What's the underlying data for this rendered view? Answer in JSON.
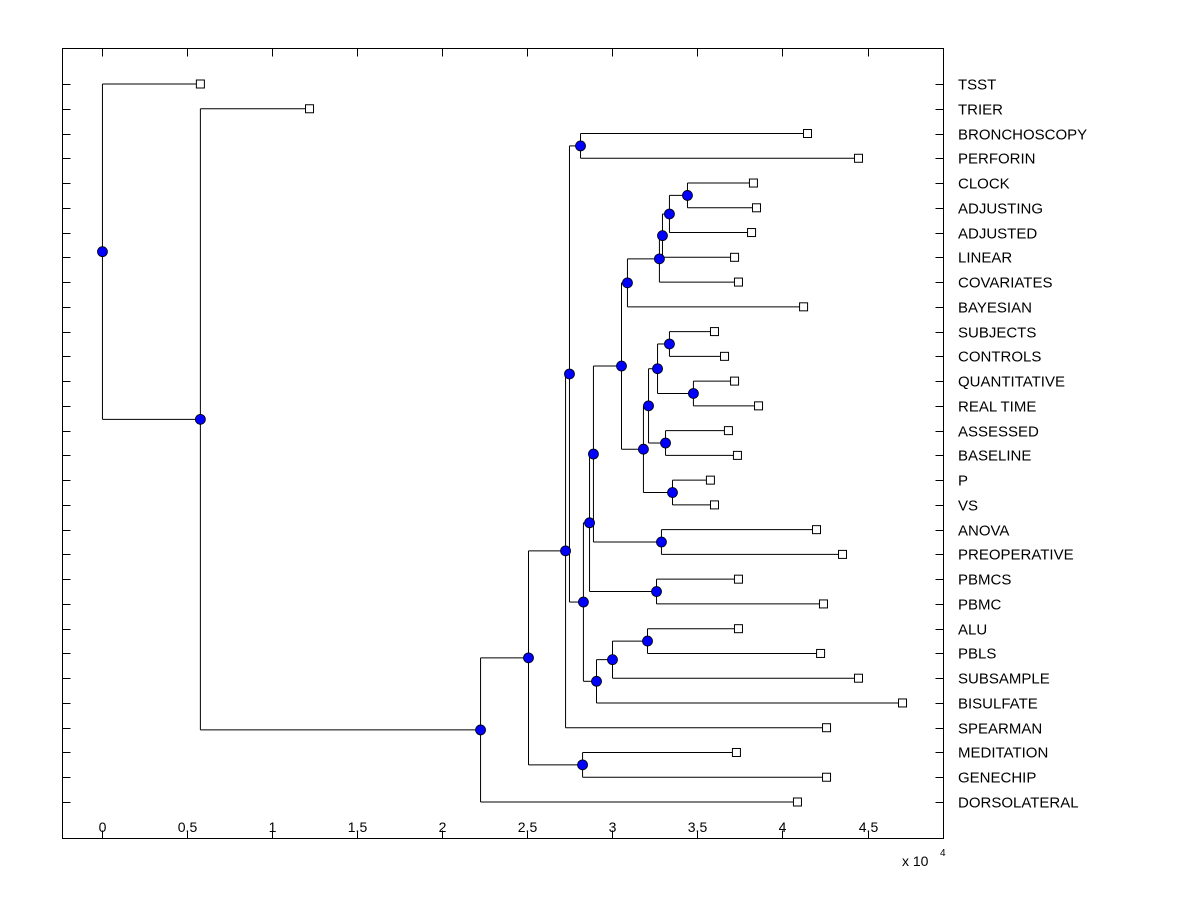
{
  "chart_data": {
    "type": "dendrogram",
    "title": "",
    "xlabel": "",
    "x_multiplier_label": "x 10",
    "x_multiplier_exponent": "4",
    "xlim": [
      -0.235,
      4.947
    ],
    "xticks": [
      "0",
      "0.5",
      "1",
      "1.5",
      "2",
      "2.5",
      "3",
      "3.5",
      "4",
      "4.5"
    ],
    "xtick_values": [
      0,
      0.5,
      1,
      1.5,
      2,
      2.5,
      3,
      3.5,
      4,
      4.5
    ],
    "leaves": [
      "TSST",
      "TRIER",
      "BRONCHOSCOPY",
      "PERFORIN",
      "CLOCK",
      "ADJUSTING",
      "ADJUSTED",
      "LINEAR",
      "COVARIATES",
      "BAYESIAN",
      "SUBJECTS",
      "CONTROLS",
      "QUANTITATIVE",
      "REAL TIME",
      "ASSESSED",
      "BASELINE",
      "P",
      "VS",
      "ANOVA",
      "PREOPERATIVE",
      "PBMCS",
      "PBMC",
      "ALU",
      "PBLS",
      "SUBSAMPLE",
      "BISULFATE",
      "SPEARMAN",
      "MEDITATION",
      "GENECHIP",
      "DORSOLATERAL"
    ],
    "node_color": "#0000ff",
    "tree": {
      "x": 0,
      "children": [
        {
          "leaf": "TSST",
          "x": 0.576
        },
        {
          "x": 0.576,
          "children": [
            {
              "leaf": "TRIER",
              "x": 1.218
            },
            {
              "x": 2.224,
              "children": [
                {
                  "x": 2.506,
                  "children": [
                    {
                      "x": 2.724,
                      "children": [
                        {
                          "x": 2.747,
                          "children": [
                            {
                              "x": 2.812,
                              "children": [
                                {
                                  "leaf": "BRONCHOSCOPY",
                                  "x": 4.147
                                },
                                {
                                  "leaf": "PERFORIN",
                                  "x": 4.447
                                }
                              ]
                            },
                            {
                              "x": 2.829,
                              "children": [
                                {
                                  "x": 2.865,
                                  "children": [
                                    {
                                      "x": 2.888,
                                      "children": [
                                        {
                                          "x": 3.053,
                                          "children": [
                                            {
                                              "x": 3.088,
                                              "children": [
                                                {
                                                  "x": 3.276,
                                                  "children": [
                                                    {
                                                      "x": 3.294,
                                                      "children": [
                                                        {
                                                          "x": 3.335,
                                                          "children": [
                                                            {
                                                              "x": 3.441,
                                                              "children": [
                                                                {
                                                                  "leaf": "CLOCK",
                                                                  "x": 3.829
                                                                },
                                                                {
                                                                  "leaf": "ADJUSTING",
                                                                  "x": 3.847
                                                                }
                                                              ]
                                                            },
                                                            {
                                                              "leaf": "ADJUSTED",
                                                              "x": 3.818
                                                            }
                                                          ]
                                                        },
                                                        {
                                                          "leaf": "LINEAR",
                                                          "x": 3.718
                                                        }
                                                      ]
                                                    },
                                                    {
                                                      "leaf": "COVARIATES",
                                                      "x": 3.741
                                                    }
                                                  ]
                                                },
                                                {
                                                  "leaf": "BAYESIAN",
                                                  "x": 4.124
                                                }
                                              ]
                                            },
                                            {
                                              "x": 3.182,
                                              "children": [
                                                {
                                                  "x": 3.212,
                                                  "children": [
                                                    {
                                                      "x": 3.265,
                                                      "children": [
                                                        {
                                                          "x": 3.335,
                                                          "children": [
                                                            {
                                                              "leaf": "SUBJECTS",
                                                              "x": 3.6
                                                            },
                                                            {
                                                              "leaf": "CONTROLS",
                                                              "x": 3.659
                                                            }
                                                          ]
                                                        },
                                                        {
                                                          "x": 3.476,
                                                          "children": [
                                                            {
                                                              "leaf": "QUANTITATIVE",
                                                              "x": 3.718
                                                            },
                                                            {
                                                              "leaf": "REAL TIME",
                                                              "x": 3.859
                                                            }
                                                          ]
                                                        }
                                                      ]
                                                    },
                                                    {
                                                      "x": 3.312,
                                                      "children": [
                                                        {
                                                          "leaf": "ASSESSED",
                                                          "x": 3.682
                                                        },
                                                        {
                                                          "leaf": "BASELINE",
                                                          "x": 3.735
                                                        }
                                                      ]
                                                    }
                                                  ]
                                                },
                                                {
                                                  "x": 3.353,
                                                  "children": [
                                                    {
                                                      "leaf": "P",
                                                      "x": 3.576
                                                    },
                                                    {
                                                      "leaf": "VS",
                                                      "x": 3.6
                                                    }
                                                  ]
                                                }
                                              ]
                                            }
                                          ]
                                        },
                                        {
                                          "x": 3.288,
                                          "children": [
                                            {
                                              "leaf": "ANOVA",
                                              "x": 4.2
                                            },
                                            {
                                              "leaf": "PREOPERATIVE",
                                              "x": 4.353
                                            }
                                          ]
                                        }
                                      ]
                                    },
                                    {
                                      "x": 3.259,
                                      "children": [
                                        {
                                          "leaf": "PBMCS",
                                          "x": 3.741
                                        },
                                        {
                                          "leaf": "PBMC",
                                          "x": 4.241
                                        }
                                      ]
                                    }
                                  ]
                                },
                                {
                                  "x": 2.906,
                                  "children": [
                                    {
                                      "x": 3.0,
                                      "children": [
                                        {
                                          "x": 3.206,
                                          "children": [
                                            {
                                              "leaf": "ALU",
                                              "x": 3.741
                                            },
                                            {
                                              "leaf": "PBLS",
                                              "x": 4.224
                                            }
                                          ]
                                        },
                                        {
                                          "leaf": "SUBSAMPLE",
                                          "x": 4.447
                                        }
                                      ]
                                    },
                                    {
                                      "leaf": "BISULFATE",
                                      "x": 4.706
                                    }
                                  ]
                                }
                              ]
                            }
                          ]
                        },
                        {
                          "leaf": "SPEARMAN",
                          "x": 4.259
                        }
                      ]
                    },
                    {
                      "x": 2.824,
                      "children": [
                        {
                          "leaf": "MEDITATION",
                          "x": 3.729
                        },
                        {
                          "leaf": "GENECHIP",
                          "x": 4.259
                        }
                      ]
                    }
                  ]
                },
                {
                  "leaf": "DORSOLATERAL",
                  "x": 4.088
                }
              ]
            }
          ]
        }
      ]
    }
  }
}
